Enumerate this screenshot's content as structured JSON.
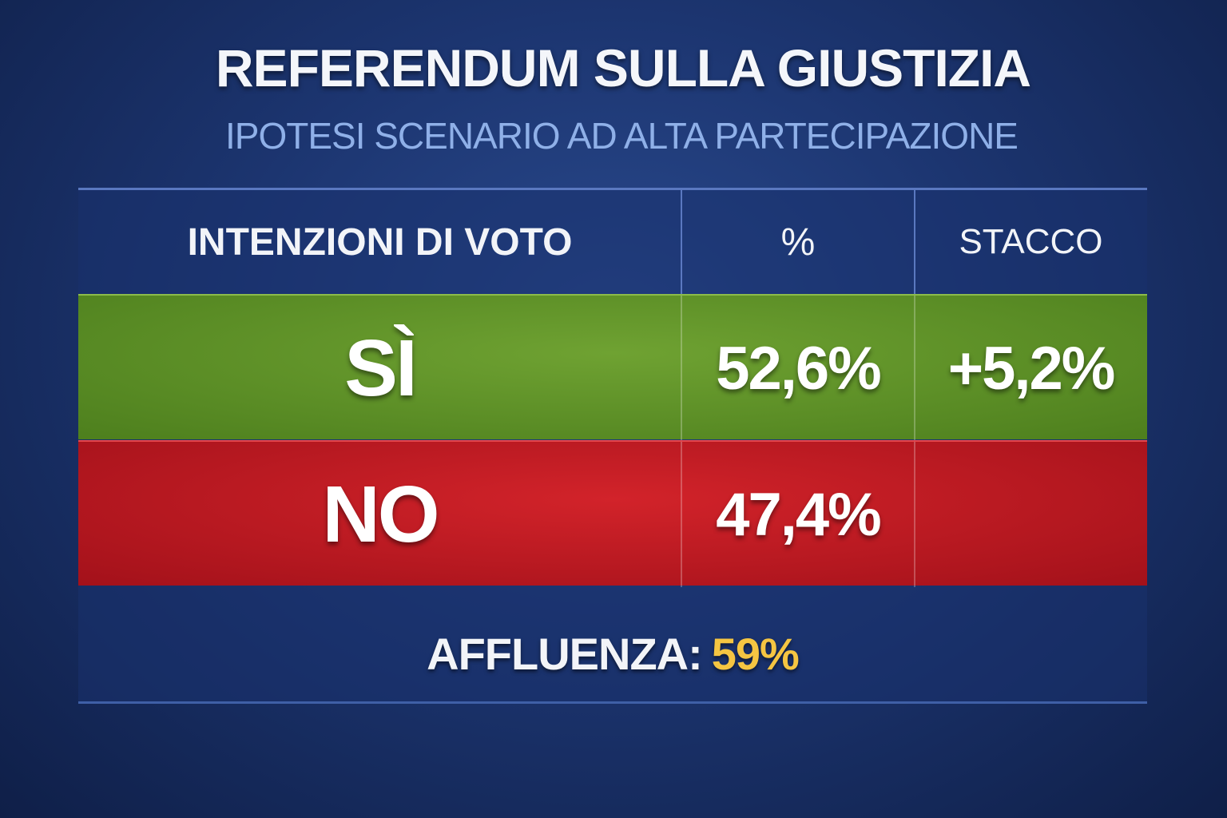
{
  "header": {
    "title": "REFERENDUM SULLA GIUSTIZIA",
    "subtitle": "IPOTESI SCENARIO AD ALTA PARTECIPAZIONE"
  },
  "table": {
    "columns": [
      "INTENZIONI DI VOTO",
      "%",
      "STACCO"
    ],
    "rows": [
      {
        "label": "SÌ",
        "percent": "52,6%",
        "gap": "+5,2%"
      },
      {
        "label": "NO",
        "percent": "47,4%"
      }
    ]
  },
  "footer": {
    "turnout_label": "AFFLUENZA:",
    "turnout_value": "59%"
  }
}
